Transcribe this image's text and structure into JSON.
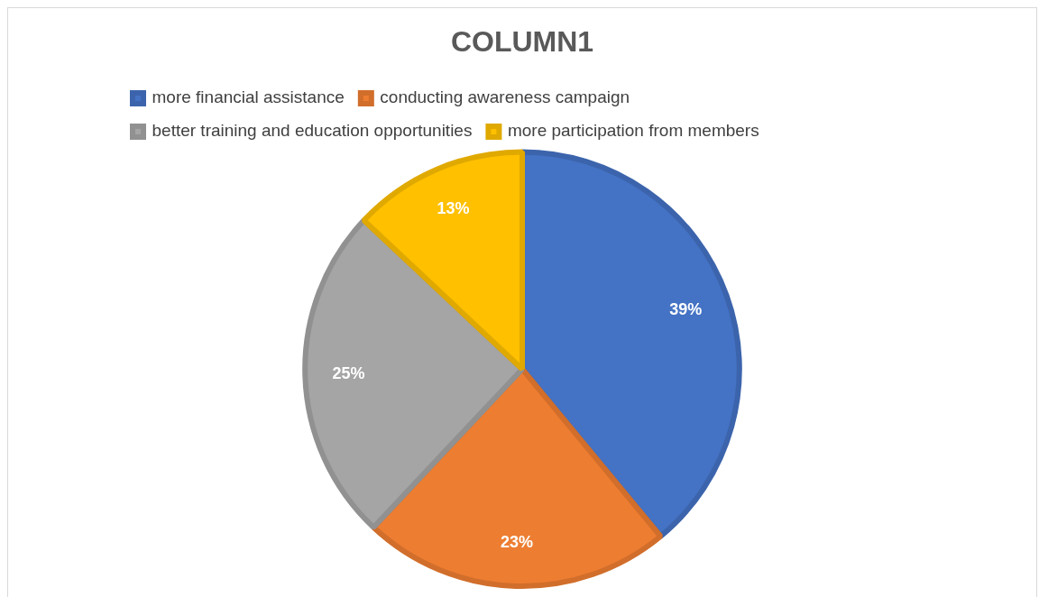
{
  "chart_data": {
    "type": "pie",
    "title": "COLUMN1",
    "categories": [
      "more financial assistance",
      "conducting awareness campaign",
      "better training and education opportunities",
      "more participation from members"
    ],
    "values": [
      39,
      23,
      25,
      13
    ],
    "colors": [
      "#4472c4",
      "#ed7d31",
      "#a5a5a5",
      "#ffc000"
    ],
    "value_labels": [
      "39%",
      "23%",
      "25%",
      "13%"
    ],
    "legend": "top"
  }
}
